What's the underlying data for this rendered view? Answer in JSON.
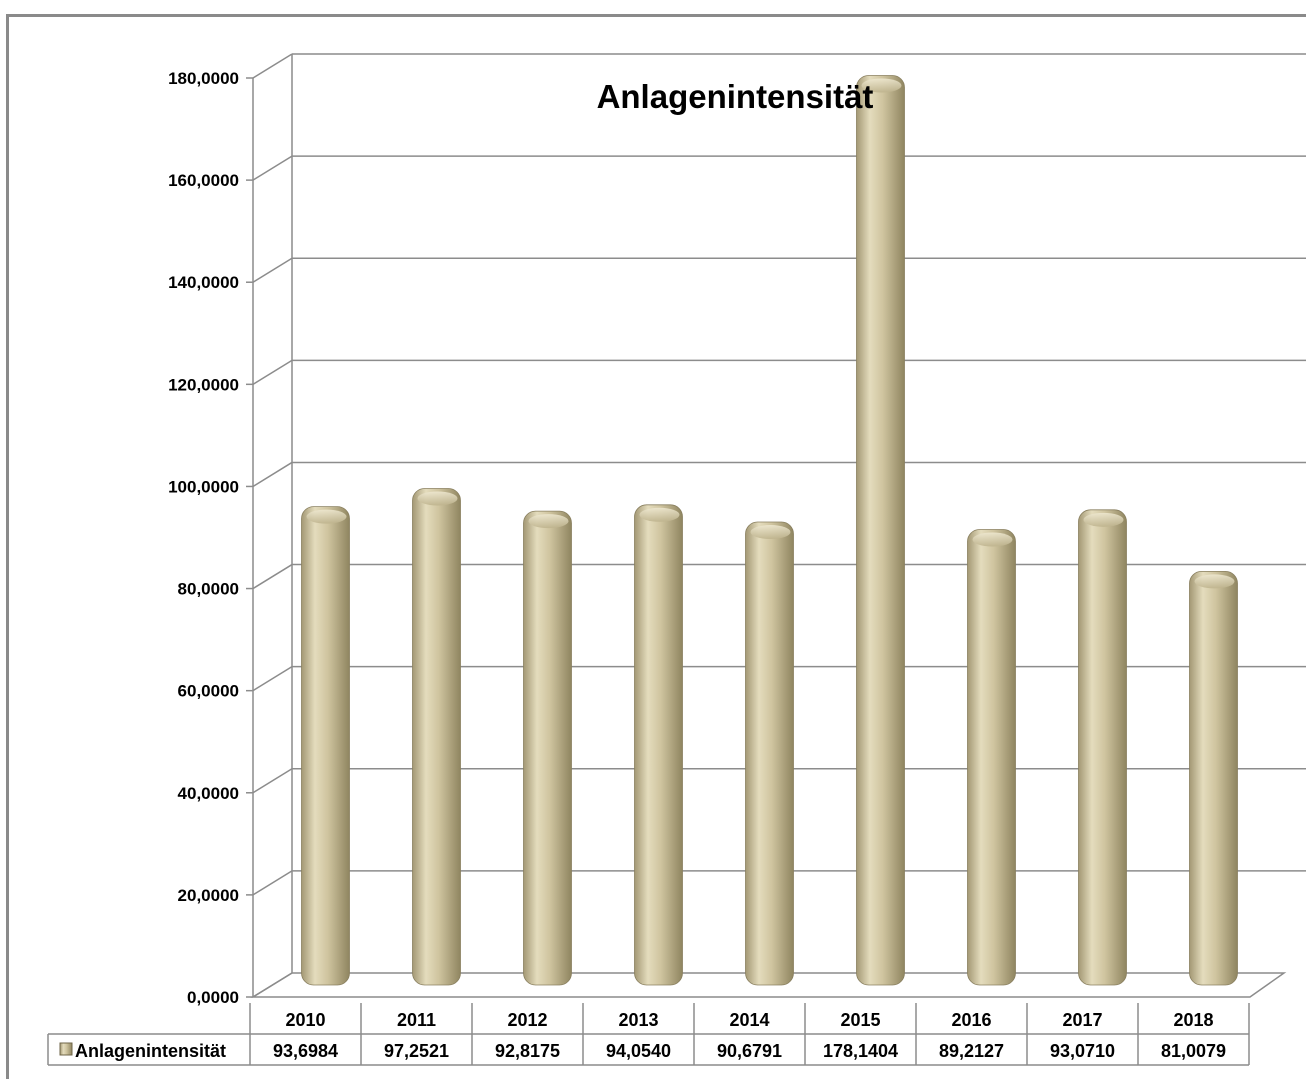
{
  "chart_data": {
    "type": "bar",
    "title": "Anlagenintensität",
    "categories": [
      "2010",
      "2011",
      "2012",
      "2013",
      "2014",
      "2015",
      "2016",
      "2017",
      "2018"
    ],
    "series": [
      {
        "name": "Anlagenintensität",
        "values": [
          93.6984,
          97.2521,
          92.8175,
          94.054,
          90.6791,
          178.1404,
          89.2127,
          93.071,
          81.0079
        ],
        "value_labels": [
          "93,6984",
          "97,2521",
          "92,8175",
          "94,0540",
          "90,6791",
          "178,1404",
          "89,2127",
          "93,0710",
          "81,0079"
        ]
      }
    ],
    "y_tick_labels": [
      "0,0000",
      "20,0000",
      "40,0000",
      "60,0000",
      "80,0000",
      "100,0000",
      "120,0000",
      "140,0000",
      "160,0000",
      "180,0000"
    ],
    "ylim": [
      0,
      180
    ],
    "grid": true,
    "three_d": true,
    "data_table": true,
    "colors": {
      "bar": "#c9bf9a",
      "bar_light": "#e6dfc2",
      "bar_dark": "#9a8f68",
      "grid": "#8c8c8c",
      "frame": "#8a8a8a"
    }
  }
}
